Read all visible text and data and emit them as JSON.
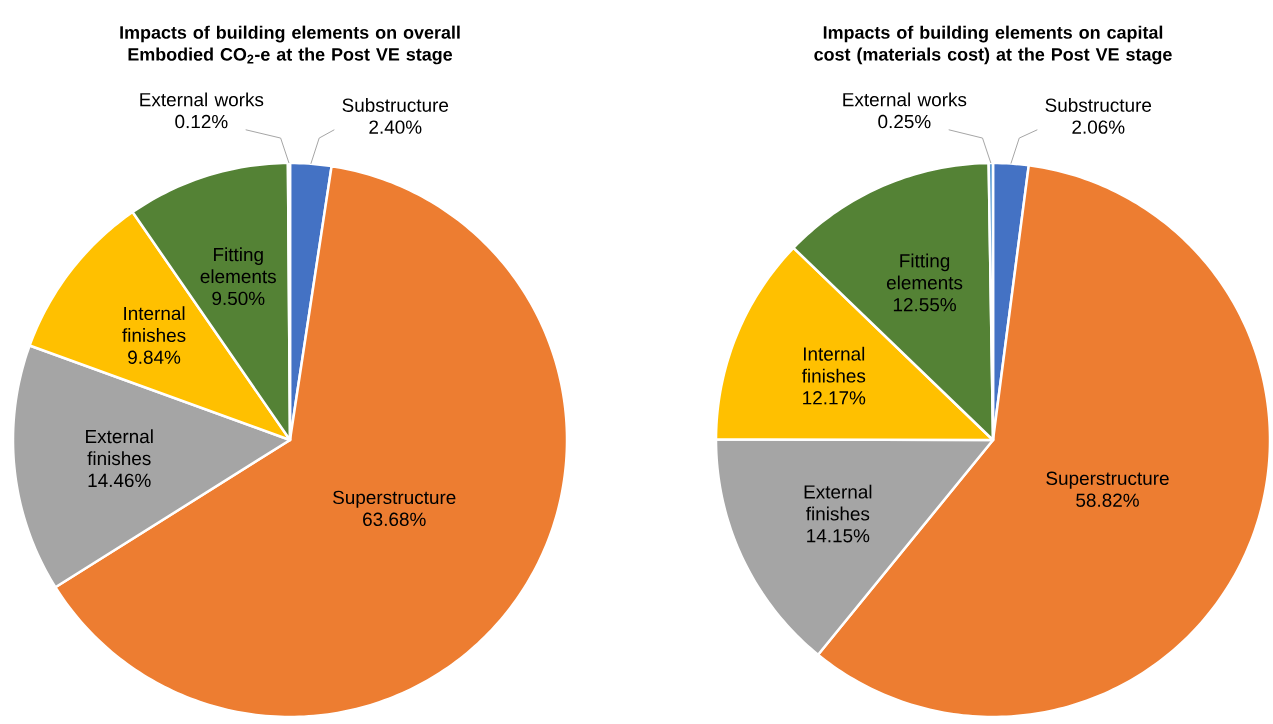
{
  "chart_data": [
    {
      "type": "pie",
      "title": "Impacts of building elements on overall Embodied CO$_{2}$-e at the Post VE stage",
      "categories": [
        "Substructure",
        "Superstructure",
        "External finishes",
        "Internal finishes",
        "Fitting elements",
        "External works"
      ],
      "values": [
        2.4,
        63.68,
        14.46,
        9.84,
        9.5,
        0.12
      ],
      "value_labels": [
        "2.40%",
        "63.68%",
        "14.46%",
        "9.84%",
        "9.50%",
        "0.12%"
      ],
      "colors": [
        "#4472c4",
        "#ed7d31",
        "#a5a5a5",
        "#ffc000",
        "#548235",
        "#5b9bd5"
      ]
    },
    {
      "type": "pie",
      "title": "Impacts of building elements on capital cost (materials cost) at the Post VE stage",
      "categories": [
        "Substructure",
        "Superstructure",
        "External finishes",
        "Internal finishes",
        "Fitting elements",
        "External works"
      ],
      "values": [
        2.06,
        58.82,
        14.15,
        12.17,
        12.55,
        0.25
      ],
      "value_labels": [
        "2.06%",
        "58.82%",
        "14.15%",
        "12.17%",
        "12.55%",
        "0.25%"
      ],
      "colors": [
        "#4472c4",
        "#ed7d31",
        "#a5a5a5",
        "#ffc000",
        "#548235",
        "#5b9bd5"
      ]
    }
  ]
}
